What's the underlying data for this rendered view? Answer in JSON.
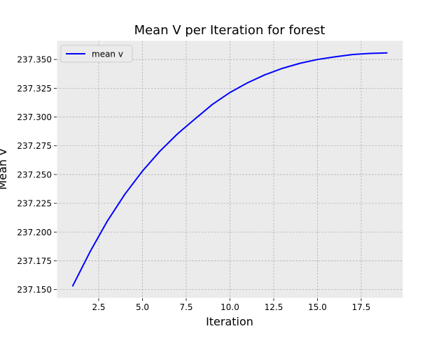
{
  "chart_data": {
    "type": "line",
    "title": "Mean V per Iteration for forest",
    "xlabel": "Iteration",
    "ylabel": "Mean V",
    "xlim": [
      0.1,
      19.9
    ],
    "ylim": [
      237.1425,
      237.3665
    ],
    "xticks": [
      2.5,
      5.0,
      7.5,
      10.0,
      12.5,
      15.0,
      17.5
    ],
    "xtick_labels": [
      "2.5",
      "5.0",
      "7.5",
      "10.0",
      "12.5",
      "15.0",
      "17.5"
    ],
    "yticks": [
      237.15,
      237.175,
      237.2,
      237.225,
      237.25,
      237.275,
      237.3,
      237.325,
      237.35
    ],
    "ytick_labels": [
      "237.150",
      "237.175",
      "237.200",
      "237.225",
      "237.250",
      "237.275",
      "237.300",
      "237.325",
      "237.350"
    ],
    "grid": true,
    "legend_position": "top-left",
    "background_color": "#ebebeb",
    "grid_color": "#b0b0b0",
    "series": [
      {
        "name": "mean v",
        "color": "#0000ff",
        "x": [
          1,
          2,
          3,
          4,
          5,
          6,
          7,
          8,
          9,
          10,
          11,
          12,
          13,
          14,
          15,
          16,
          17,
          18,
          19
        ],
        "y": [
          237.1527,
          237.1827,
          237.2097,
          237.233,
          237.253,
          237.2703,
          237.2853,
          237.2983,
          237.311,
          237.3213,
          237.3297,
          237.3367,
          237.3423,
          237.3467,
          237.35,
          237.3523,
          237.3543,
          237.3553,
          237.3557
        ]
      }
    ]
  }
}
